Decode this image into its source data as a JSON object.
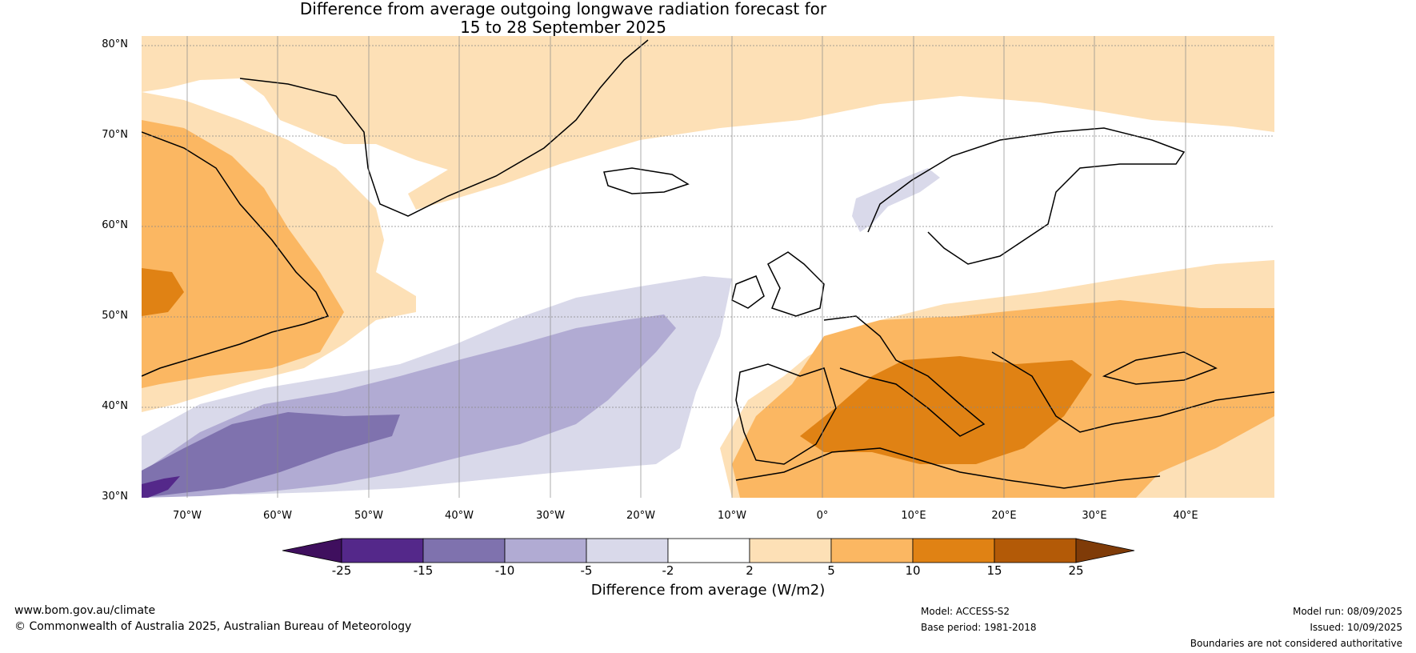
{
  "title": {
    "line1": "Difference from average outgoing longwave radiation forecast for",
    "line2": "15 to 28 September 2025"
  },
  "axes": {
    "lat_ticks": [
      "80°N",
      "70°N",
      "60°N",
      "50°N",
      "40°N",
      "30°N"
    ],
    "lon_ticks": [
      "70°W",
      "60°W",
      "50°W",
      "40°W",
      "30°W",
      "20°W",
      "10°W",
      "0°",
      "10°E",
      "20°E",
      "30°E",
      "40°E"
    ],
    "lat_range": [
      30,
      80
    ],
    "lon_range": [
      -75,
      50
    ]
  },
  "legend": {
    "title": "Difference from average (W/m2)",
    "ticks": [
      "-25",
      "-15",
      "-10",
      "-5",
      "-2",
      "2",
      "5",
      "10",
      "15",
      "25"
    ],
    "colors": [
      "#3f0f5e",
      "#54288a",
      "#7f72ae",
      "#b1abd3",
      "#d9d9ea",
      "#ffffff",
      "#fde0b6",
      "#fbb762",
      "#e08214",
      "#b35a07",
      "#7f3b08"
    ]
  },
  "footer": {
    "website": "www.bom.gov.au/climate",
    "copyright": "© Commonwealth of Australia 2025, Australian Bureau of Meteorology",
    "model": "Model: ACCESS-S2",
    "base_period": "Base period: 1981-2018",
    "model_run": "Model run: 08/09/2025",
    "issued": "Issued: 10/09/2025",
    "disclaimer": "Boundaries are not considered authoritative"
  }
}
